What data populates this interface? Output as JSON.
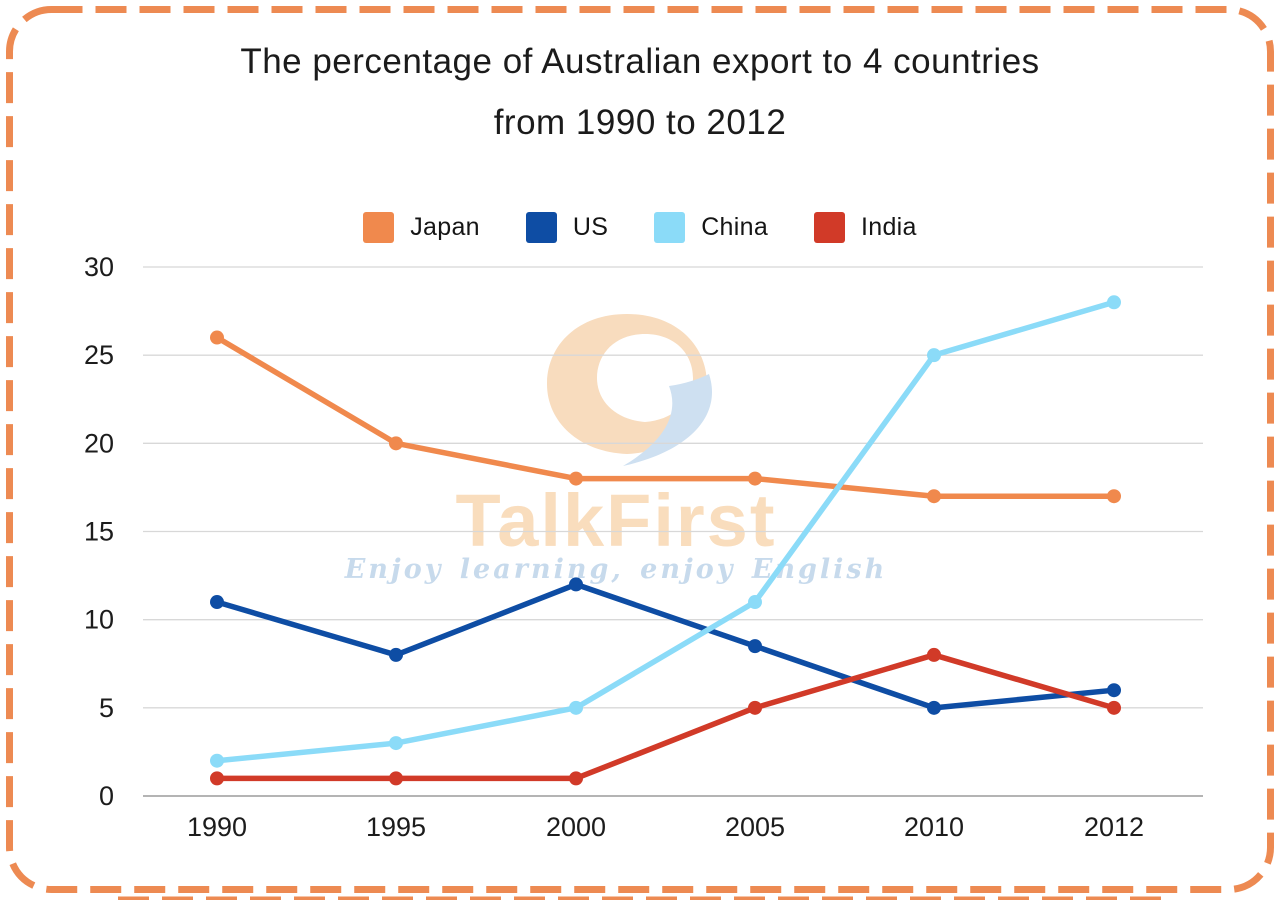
{
  "frame": {
    "border_color": "#ED8A52"
  },
  "title": {
    "line1": "The percentage of Australian export to 4 countries",
    "line2": "from 1990 to 2012"
  },
  "watermark": {
    "brand": "TalkFirst",
    "tagline": "Enjoy learning, enjoy English",
    "brand_color": "#f9ddbd",
    "tagline_color": "#c7daec"
  },
  "chart_data": {
    "type": "line",
    "title": "The percentage of Australian export to 4 countries from 1990 to 2012",
    "categories": [
      "1990",
      "1995",
      "2000",
      "2005",
      "2010",
      "2012"
    ],
    "series": [
      {
        "name": "Japan",
        "color": "#F0894D",
        "values": [
          26,
          20,
          18,
          18,
          17,
          17
        ]
      },
      {
        "name": "US",
        "color": "#0E4DA4",
        "values": [
          11,
          8,
          12,
          8.5,
          5,
          6
        ]
      },
      {
        "name": "China",
        "color": "#8BDBF8",
        "values": [
          2,
          3,
          5,
          11,
          25,
          28
        ]
      },
      {
        "name": "India",
        "color": "#D13A28",
        "values": [
          1,
          1,
          1,
          5,
          8,
          5
        ]
      }
    ],
    "xlabel": "",
    "ylabel": "",
    "ylim": [
      0,
      30
    ],
    "yticks": [
      0,
      5,
      10,
      15,
      20,
      25,
      30
    ],
    "grid": true,
    "legend_position": "top",
    "axis_color": "#a9a9a9",
    "gridline_color": "#d8d8d8",
    "tick_label_color": "#1c1c1c"
  }
}
